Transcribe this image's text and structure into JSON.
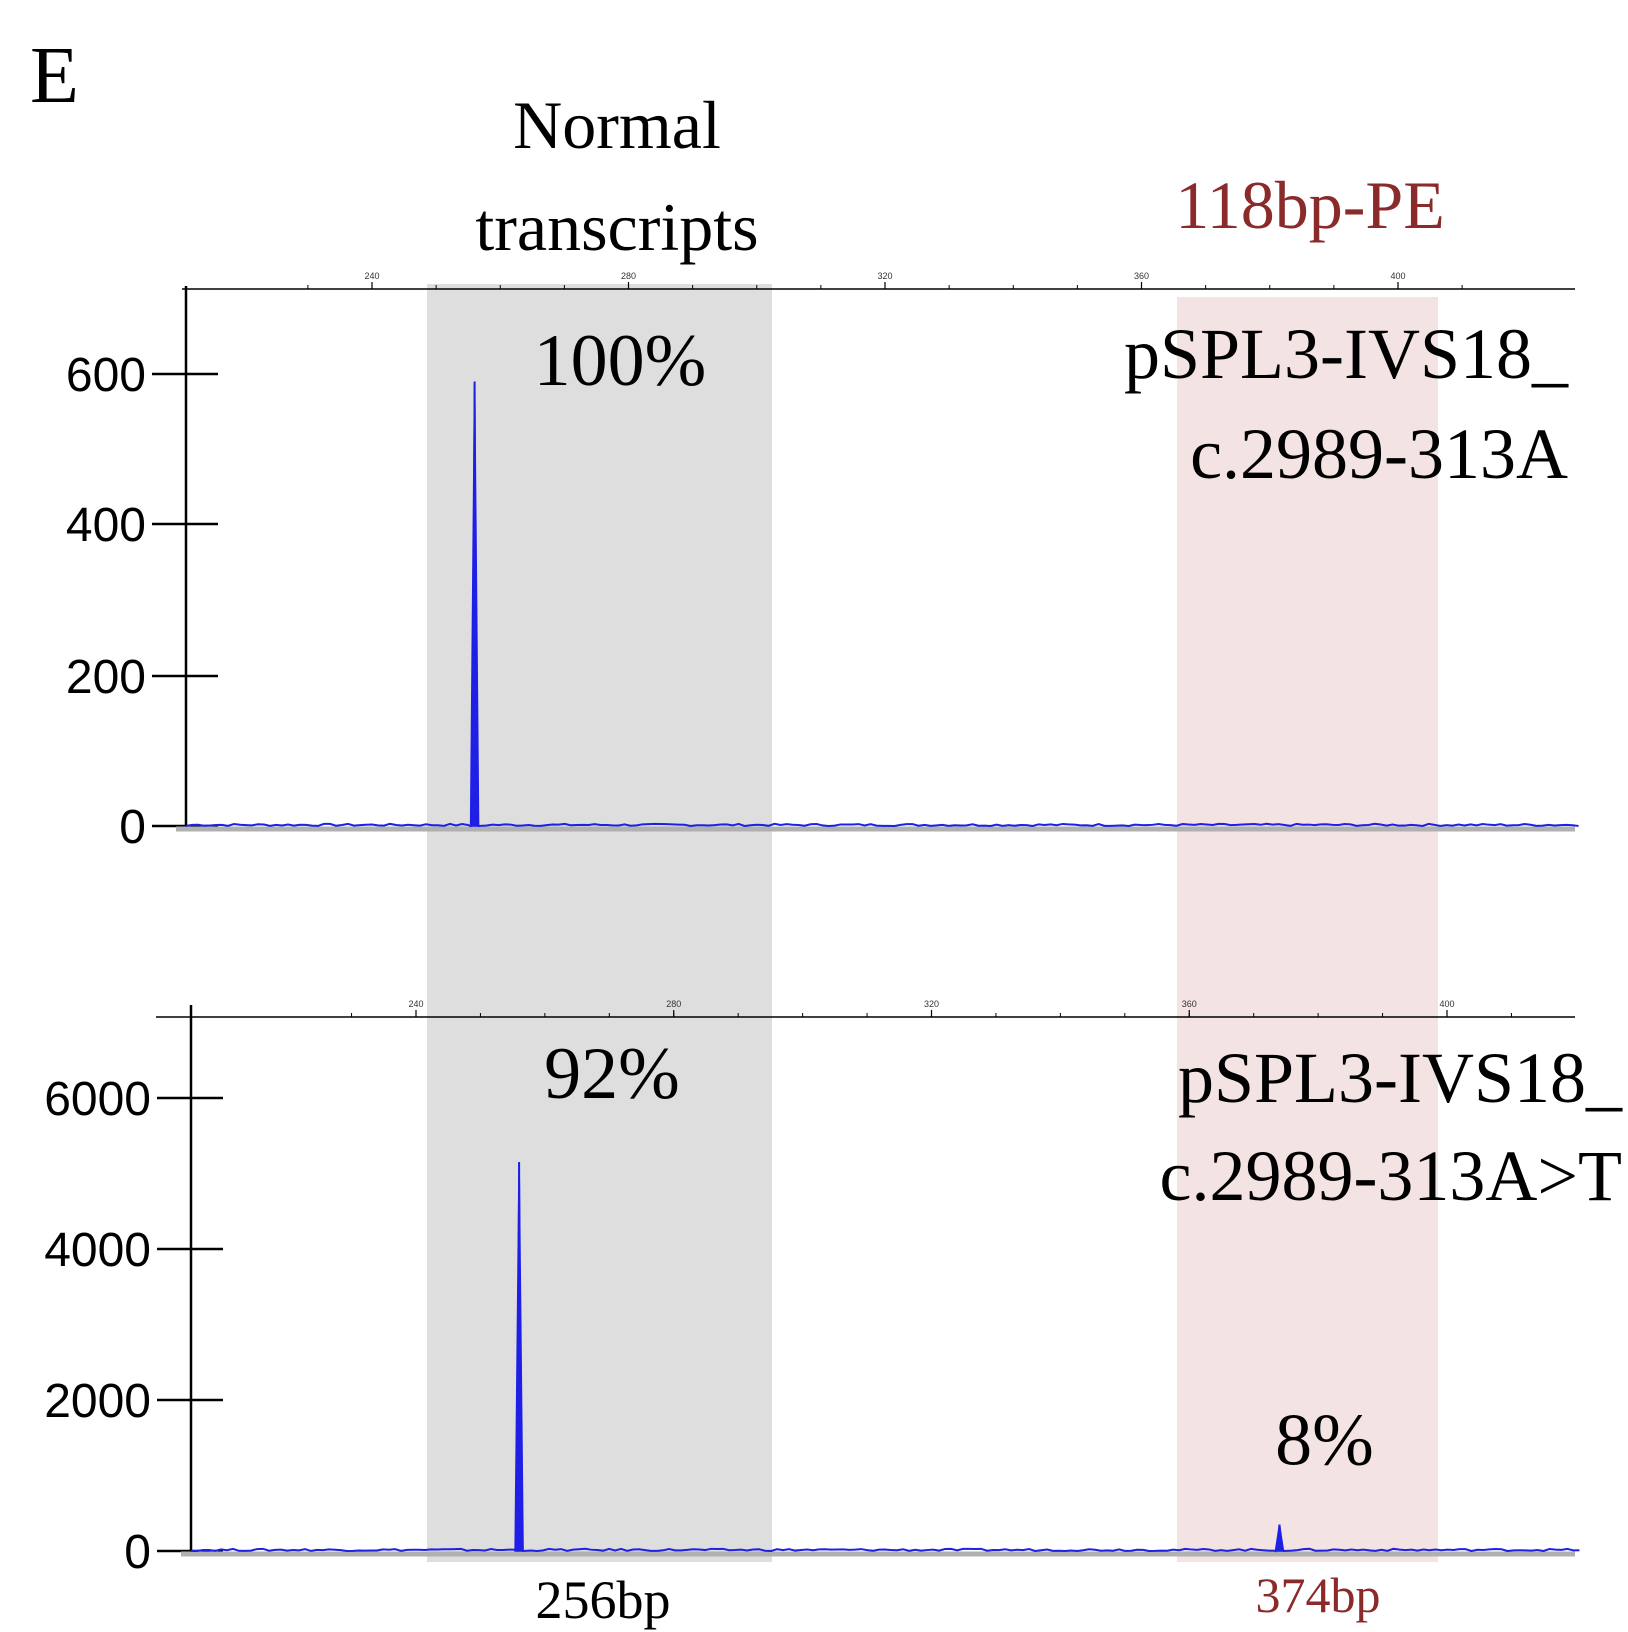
{
  "panel_label": "E",
  "header": {
    "normal_line1": "Normal",
    "normal_line2": "transcripts",
    "pe_label": "118bp-PE"
  },
  "colors": {
    "trace": "#1f1fe6",
    "normal_band": "#dedede",
    "pe_band": "#f3e3e3",
    "pe_text": "#8b2a2a",
    "axis": "#000000"
  },
  "chart_data": [
    {
      "type": "line",
      "sample_label_line1": "pSPL3-IVS18_",
      "sample_label_line2": "c.2989-313A",
      "x_range_bp": [
        220,
        420
      ],
      "x_ticks": [
        240,
        280,
        320,
        360,
        400
      ],
      "y_ticks": [
        0,
        200,
        400,
        600
      ],
      "ylim": [
        0,
        700
      ],
      "peaks": [
        {
          "size_bp": 256,
          "height": 590,
          "percent_label": "100%"
        }
      ]
    },
    {
      "type": "line",
      "sample_label_line1": "pSPL3-IVS18_",
      "sample_label_line2": "c.2989-313A>T",
      "x_range_bp": [
        220,
        420
      ],
      "x_ticks": [
        240,
        280,
        320,
        360,
        400
      ],
      "y_ticks": [
        0,
        2000,
        4000,
        6000
      ],
      "ylim": [
        0,
        7000
      ],
      "peaks": [
        {
          "size_bp": 256,
          "height": 5150,
          "percent_label": "92%"
        },
        {
          "size_bp": 374,
          "height": 350,
          "percent_label": "8%"
        }
      ]
    }
  ],
  "band_labels": {
    "normal_size": "256bp",
    "pe_size": "374bp"
  }
}
